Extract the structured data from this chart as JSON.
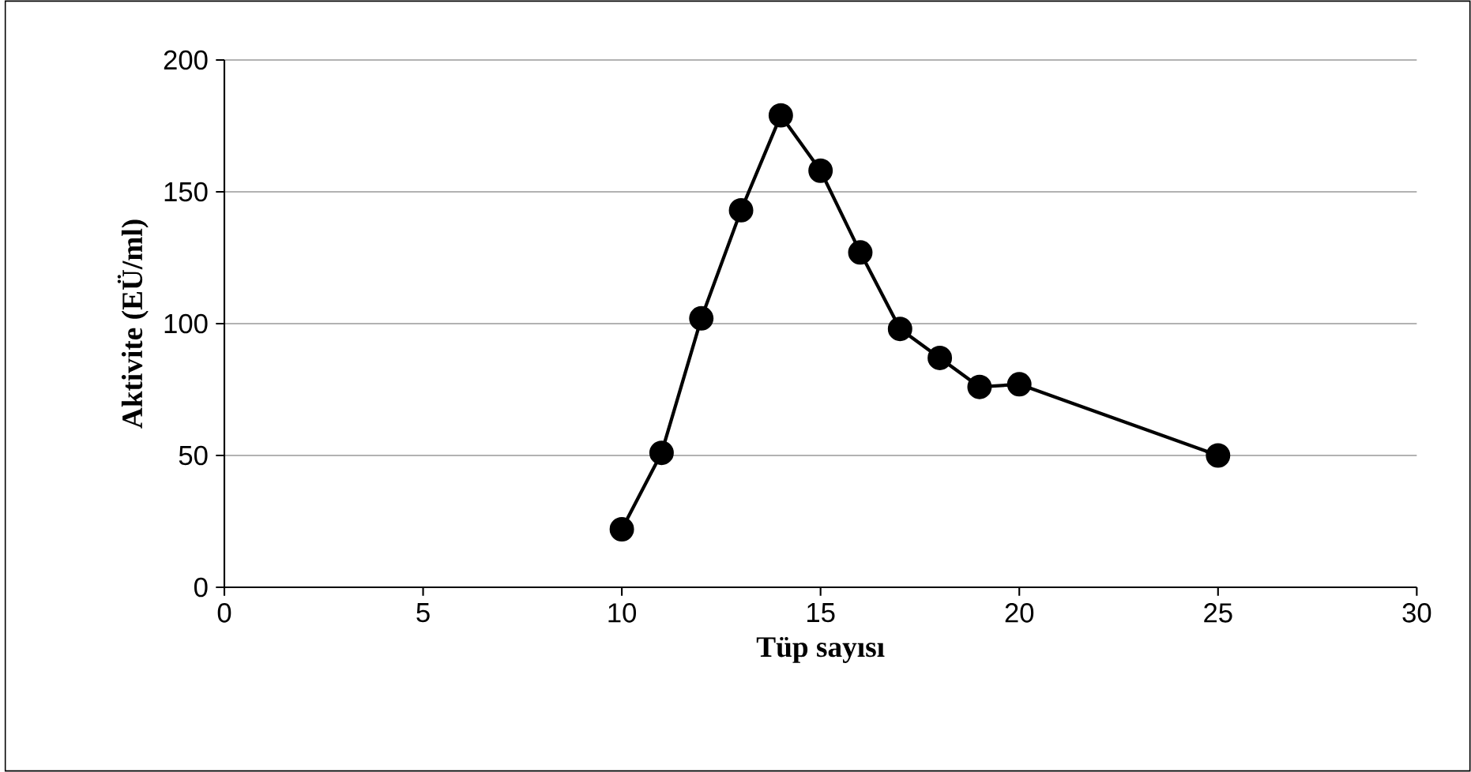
{
  "chart_data": {
    "type": "line",
    "xlabel": "Tüp sayısı",
    "ylabel": "Aktivite (EÜ/ml)",
    "x": [
      10,
      11,
      12,
      13,
      14,
      15,
      16,
      17,
      18,
      19,
      20,
      25
    ],
    "values": [
      22,
      51,
      102,
      143,
      179,
      158,
      127,
      98,
      87,
      76,
      77,
      50
    ],
    "color": "#000000",
    "marker": "circle",
    "line_style": "solid",
    "grid": "y",
    "xlim": [
      0,
      30
    ],
    "xticks": [
      0,
      5,
      10,
      15,
      20,
      25,
      30
    ],
    "ylim": [
      0,
      200
    ],
    "yticks": [
      0,
      50,
      100,
      150,
      200
    ]
  }
}
